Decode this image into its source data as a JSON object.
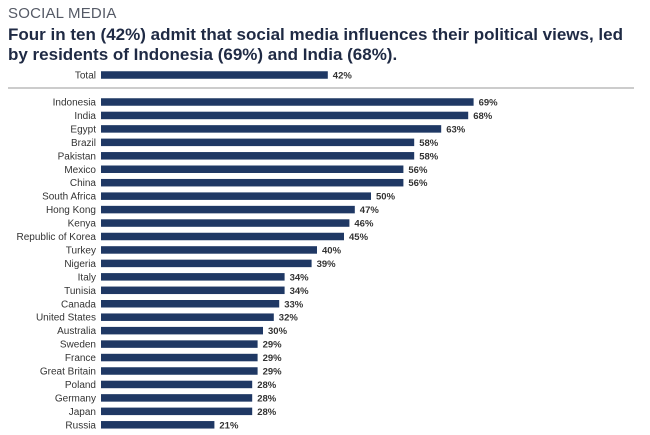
{
  "section_label": "SOCIAL MEDIA",
  "headline": "Four in ten (42%) admit that social media influences their political views, led by residents of Indonesia (69%) and India (68%).",
  "colors": {
    "bar": "#1f3864",
    "divider": "#9a9a9a",
    "text": "#333333"
  },
  "chart_data": {
    "type": "bar",
    "orientation": "horizontal",
    "title": "Four in ten (42%) admit that social media influences their political views, led by residents of Indonesia (69%) and India (68%).",
    "value_suffix": "%",
    "total": {
      "category": "Total",
      "value": 42
    },
    "categories": [
      "Indonesia",
      "India",
      "Egypt",
      "Brazil",
      "Pakistan",
      "Mexico",
      "China",
      "South Africa",
      "Hong Kong",
      "Kenya",
      "Republic of Korea",
      "Turkey",
      "Nigeria",
      "Italy",
      "Tunisia",
      "Canada",
      "United States",
      "Australia",
      "Sweden",
      "France",
      "Great Britain",
      "Poland",
      "Germany",
      "Japan",
      "Russia"
    ],
    "values": [
      69,
      68,
      63,
      58,
      58,
      56,
      56,
      50,
      47,
      46,
      45,
      40,
      39,
      34,
      34,
      33,
      32,
      30,
      29,
      29,
      29,
      28,
      28,
      28,
      21
    ],
    "xlim": [
      0,
      100
    ]
  }
}
